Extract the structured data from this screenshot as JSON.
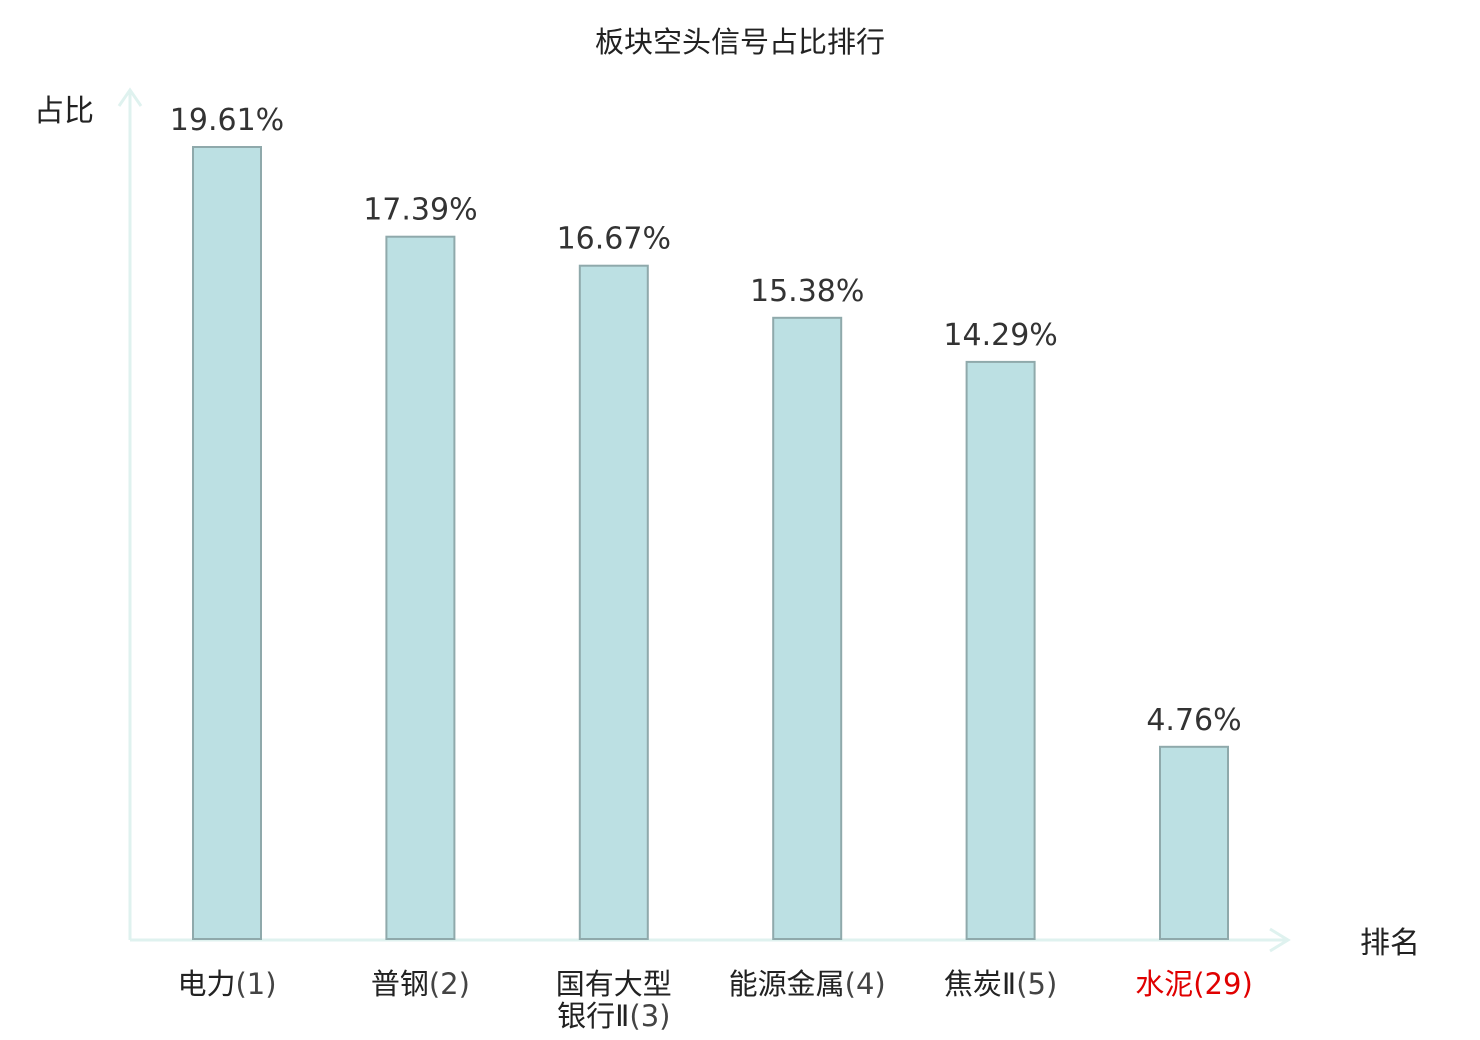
{
  "chart_data": {
    "type": "bar",
    "title": "板块空头信号占比排行",
    "xlabel": "排名",
    "ylabel": "占比",
    "categories": [
      {
        "name_lines": [
          "电力"
        ],
        "rank": "(1)"
      },
      {
        "name_lines": [
          "普钢"
        ],
        "rank": "(2)"
      },
      {
        "name_lines": [
          "国有大型",
          "银行Ⅱ"
        ],
        "rank": "(3)"
      },
      {
        "name_lines": [
          "能源金属"
        ],
        "rank": "(4)"
      },
      {
        "name_lines": [
          "焦炭Ⅱ"
        ],
        "rank": "(5)"
      },
      {
        "name_lines": [
          "水泥"
        ],
        "rank": "(29)"
      }
    ],
    "values": [
      19.61,
      17.39,
      16.67,
      15.38,
      14.29,
      4.76
    ],
    "value_labels": [
      "19.61%",
      "17.39%",
      "16.67%",
      "15.38%",
      "14.29%",
      "4.76%"
    ],
    "highlight_index": 5,
    "ylim": [
      0,
      19.61
    ],
    "grid": false,
    "colors": {
      "bar_fill": "#bce0e3",
      "bar_stroke": "#8fa9ab",
      "axis": "#dff2ef",
      "text": "#222222",
      "rank_text": "#444444",
      "highlight": "#e00000"
    }
  }
}
